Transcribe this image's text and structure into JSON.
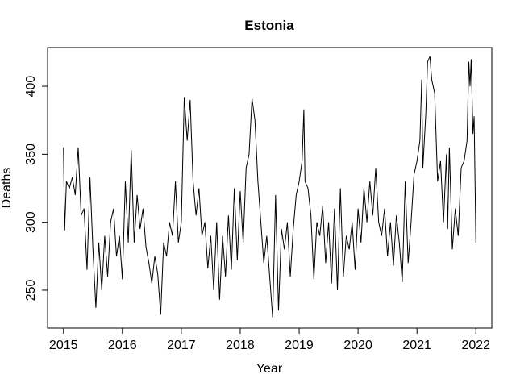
{
  "chart_data": {
    "type": "line",
    "title": "Estonia",
    "x_label": "Year",
    "y_label": "Deaths",
    "xlim": [
      2014.73,
      2022.27
    ],
    "ylim": [
      222.1,
      428.5
    ],
    "xticks": [
      2015,
      2016,
      2017,
      2018,
      2019,
      2020,
      2021,
      2022
    ],
    "yticks": [
      250,
      300,
      350,
      400
    ],
    "x": [
      2015.0,
      2015.02,
      2015.05,
      2015.1,
      2015.15,
      2015.2,
      2015.25,
      2015.3,
      2015.35,
      2015.4,
      2015.45,
      2015.5,
      2015.55,
      2015.6,
      2015.65,
      2015.7,
      2015.75,
      2015.8,
      2015.85,
      2015.9,
      2015.95,
      2016.0,
      2016.05,
      2016.1,
      2016.15,
      2016.2,
      2016.25,
      2016.3,
      2016.35,
      2016.4,
      2016.45,
      2016.5,
      2016.55,
      2016.6,
      2016.65,
      2016.7,
      2016.75,
      2016.8,
      2016.85,
      2016.9,
      2016.95,
      2017.0,
      2017.05,
      2017.1,
      2017.15,
      2017.2,
      2017.25,
      2017.3,
      2017.35,
      2017.4,
      2017.45,
      2017.5,
      2017.55,
      2017.6,
      2017.65,
      2017.7,
      2017.75,
      2017.8,
      2017.85,
      2017.9,
      2017.95,
      2018.0,
      2018.05,
      2018.1,
      2018.15,
      2018.2,
      2018.25,
      2018.3,
      2018.35,
      2018.4,
      2018.45,
      2018.5,
      2018.55,
      2018.6,
      2018.65,
      2018.7,
      2018.75,
      2018.8,
      2018.85,
      2018.9,
      2018.95,
      2019.0,
      2019.05,
      2019.08,
      2019.1,
      2019.15,
      2019.2,
      2019.25,
      2019.3,
      2019.35,
      2019.4,
      2019.45,
      2019.5,
      2019.55,
      2019.6,
      2019.65,
      2019.7,
      2019.75,
      2019.8,
      2019.85,
      2019.9,
      2019.95,
      2020.0,
      2020.05,
      2020.1,
      2020.15,
      2020.2,
      2020.25,
      2020.3,
      2020.35,
      2020.4,
      2020.45,
      2020.5,
      2020.55,
      2020.6,
      2020.65,
      2020.7,
      2020.75,
      2020.8,
      2020.85,
      2020.9,
      2020.95,
      2021.0,
      2021.05,
      2021.08,
      2021.1,
      2021.15,
      2021.18,
      2021.22,
      2021.25,
      2021.3,
      2021.35,
      2021.4,
      2021.45,
      2021.5,
      2021.52,
      2021.55,
      2021.6,
      2021.65,
      2021.7,
      2021.75,
      2021.8,
      2021.85,
      2021.88,
      2021.9,
      2021.92,
      2021.95,
      2021.97,
      2022.0
    ],
    "series": [
      {
        "name": "Deaths",
        "color": "#000000",
        "values": [
          355,
          294,
          330,
          325,
          333,
          320,
          355,
          305,
          310,
          265,
          333,
          280,
          237,
          285,
          250,
          290,
          260,
          300,
          310,
          275,
          290,
          258,
          330,
          285,
          353,
          285,
          320,
          295,
          310,
          282,
          270,
          255,
          275,
          262,
          232,
          285,
          275,
          300,
          290,
          330,
          285,
          300,
          392,
          360,
          390,
          330,
          305,
          325,
          290,
          300,
          266,
          290,
          250,
          300,
          243,
          290,
          260,
          305,
          265,
          325,
          272,
          323,
          285,
          340,
          350,
          391,
          375,
          330,
          300,
          270,
          290,
          260,
          230,
          320,
          235,
          295,
          280,
          300,
          260,
          295,
          320,
          330,
          345,
          383,
          330,
          325,
          305,
          258,
          300,
          290,
          312,
          270,
          300,
          255,
          310,
          250,
          325,
          260,
          290,
          280,
          300,
          265,
          310,
          285,
          325,
          300,
          330,
          305,
          340,
          300,
          290,
          310,
          275,
          300,
          268,
          305,
          285,
          256,
          330,
          270,
          300,
          335,
          345,
          360,
          405,
          340,
          380,
          418,
          422,
          405,
          395,
          330,
          345,
          300,
          350,
          295,
          355,
          280,
          310,
          290,
          340,
          345,
          360,
          418,
          400,
          420,
          365,
          378,
          285
        ]
      }
    ]
  }
}
